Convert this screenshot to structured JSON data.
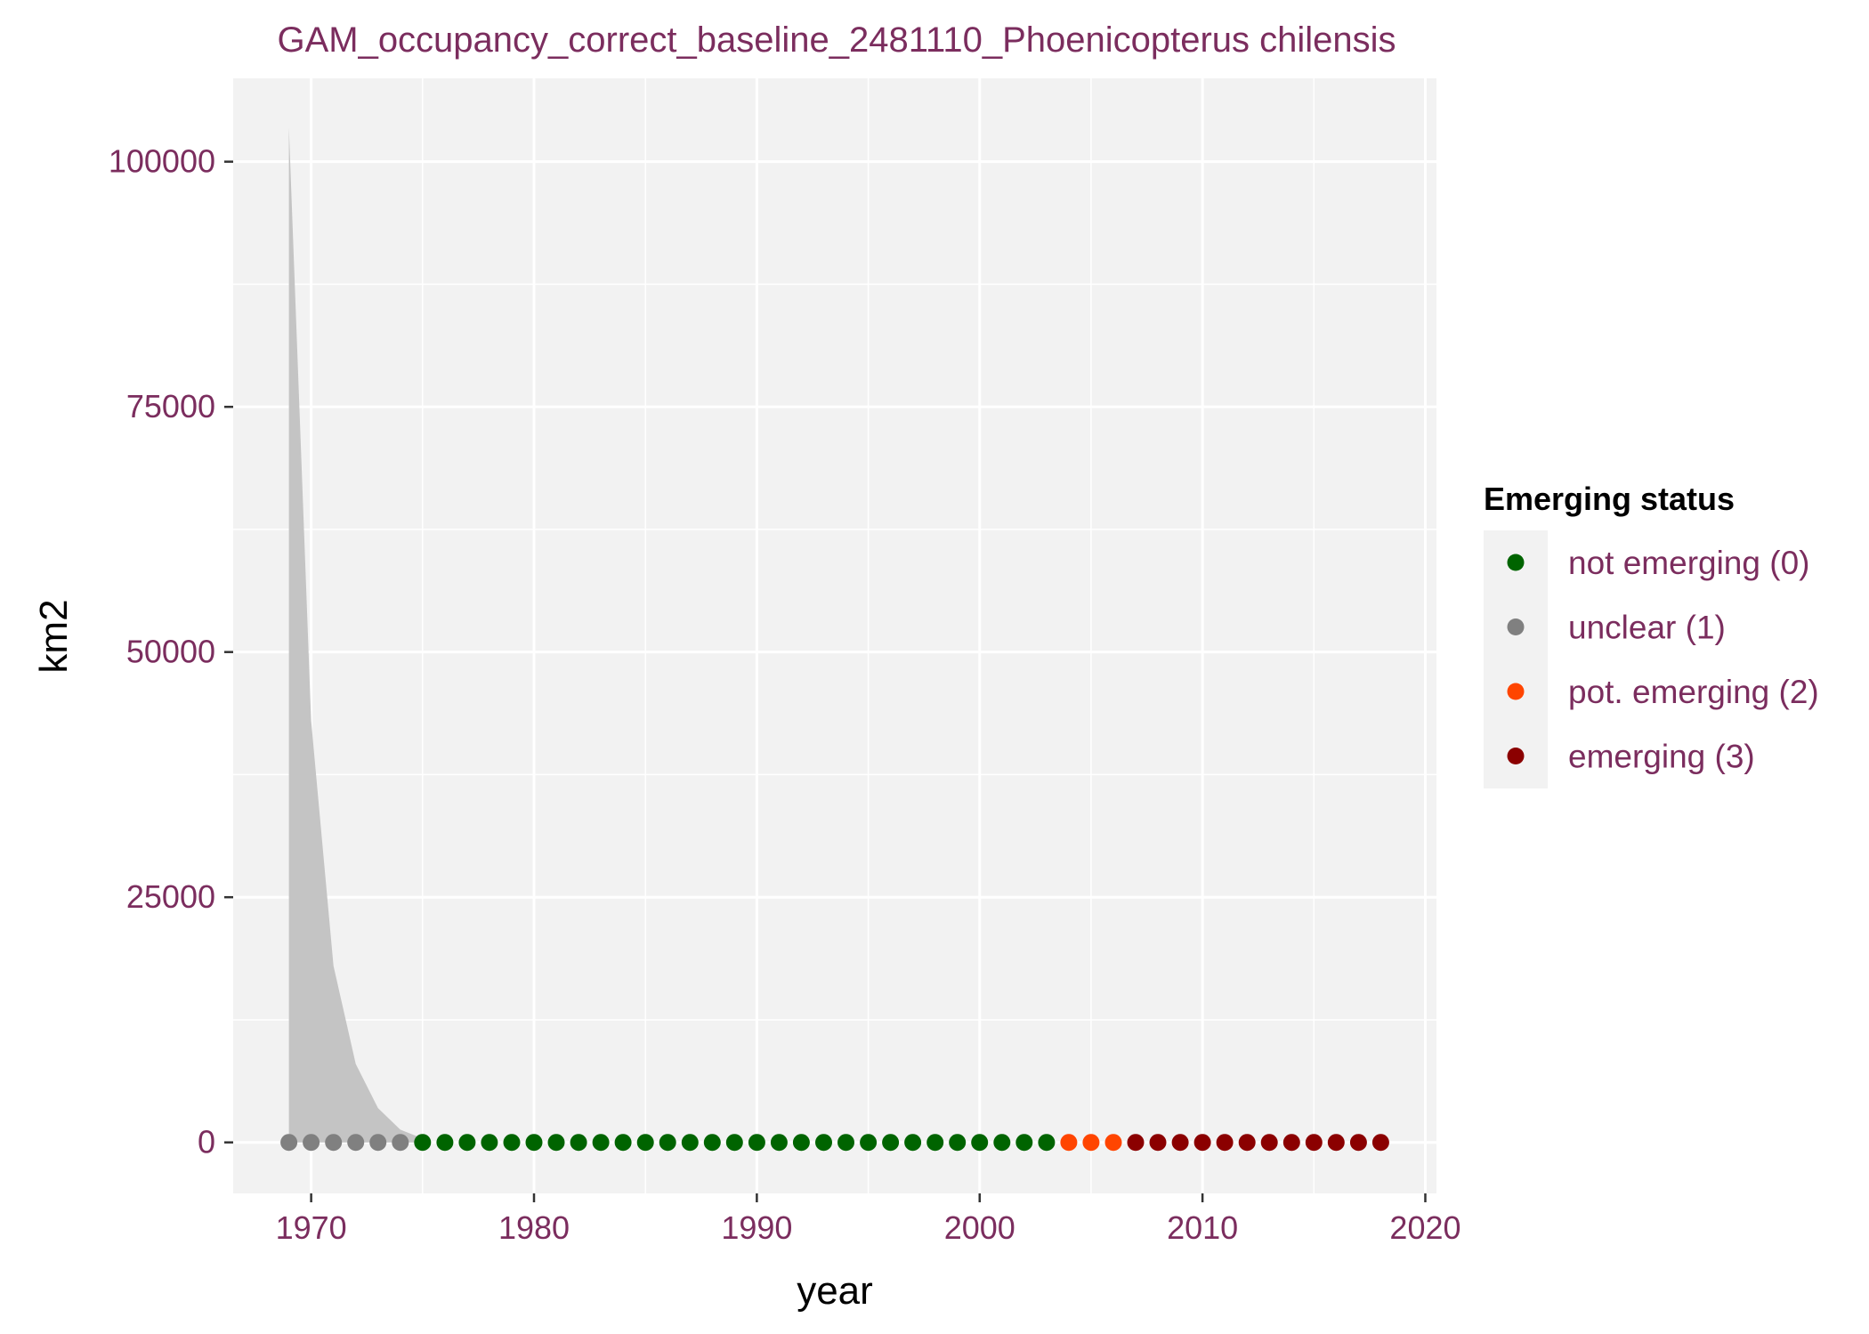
{
  "chart_data": {
    "type": "scatter",
    "title": "GAM_occupancy_correct_baseline_2481110_Phoenicopterus chilensis",
    "xlabel": "year",
    "ylabel": "km2",
    "xlim": [
      1966.5,
      2020.5
    ],
    "ylim": [
      -5200,
      108500
    ],
    "x_ticks": [
      1970,
      1980,
      1990,
      2000,
      2010,
      2020
    ],
    "x_tick_labels": [
      "1970",
      "1980",
      "1990",
      "2000",
      "2010",
      "2020"
    ],
    "y_ticks": [
      0,
      25000,
      50000,
      75000,
      100000
    ],
    "y_tick_labels": [
      "0",
      "25000",
      "50000",
      "75000",
      "100000"
    ],
    "grid": true,
    "legend": {
      "title": "Emerging status",
      "placement": "right",
      "entries": [
        {
          "label": "not emerging (0)",
          "color": "#006400"
        },
        {
          "label": "unclear (1)",
          "color": "#808080"
        },
        {
          "label": "pot. emerging (2)",
          "color": "#ff4500"
        },
        {
          "label": "emerging (3)",
          "color": "#8b0000"
        }
      ]
    },
    "ribbon": {
      "x": [
        1969,
        1970,
        1971,
        1972,
        1973,
        1974,
        1975
      ],
      "upper": [
        103500,
        43000,
        18000,
        8000,
        3500,
        1300,
        400
      ],
      "lower": [
        0,
        0,
        0,
        0,
        0,
        0,
        0
      ],
      "color": "#c4c4c4"
    },
    "points": {
      "x": [
        1969,
        1970,
        1971,
        1972,
        1973,
        1974,
        1975,
        1976,
        1977,
        1978,
        1979,
        1980,
        1981,
        1982,
        1983,
        1984,
        1985,
        1986,
        1987,
        1988,
        1989,
        1990,
        1991,
        1992,
        1993,
        1994,
        1995,
        1996,
        1997,
        1998,
        1999,
        2000,
        2001,
        2002,
        2003,
        2004,
        2005,
        2006,
        2007,
        2008,
        2009,
        2010,
        2011,
        2012,
        2013,
        2014,
        2015,
        2016,
        2017,
        2018
      ],
      "y": [
        0,
        0,
        0,
        0,
        0,
        0,
        0,
        0,
        0,
        0,
        0,
        0,
        0,
        0,
        0,
        0,
        0,
        0,
        0,
        0,
        0,
        0,
        0,
        0,
        0,
        0,
        0,
        0,
        0,
        0,
        0,
        0,
        0,
        0,
        0,
        0,
        0,
        0,
        0,
        0,
        0,
        0,
        0,
        0,
        0,
        0,
        0,
        0,
        0,
        0
      ],
      "status": [
        1,
        1,
        1,
        1,
        1,
        1,
        0,
        0,
        0,
        0,
        0,
        0,
        0,
        0,
        0,
        0,
        0,
        0,
        0,
        0,
        0,
        0,
        0,
        0,
        0,
        0,
        0,
        0,
        0,
        0,
        0,
        0,
        0,
        0,
        0,
        2,
        2,
        2,
        3,
        3,
        3,
        3,
        3,
        3,
        3,
        3,
        3,
        3,
        3,
        3
      ]
    }
  }
}
